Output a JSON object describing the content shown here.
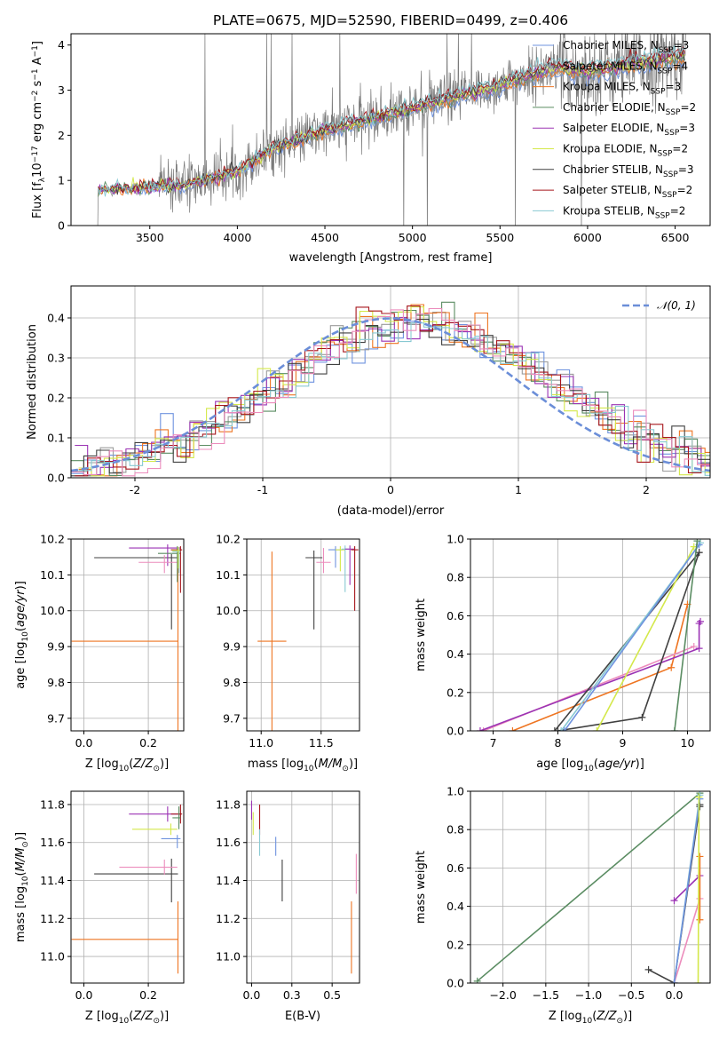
{
  "figure_title": "PLATE=0675, MJD=52590, FIBERID=0499, z=0.406",
  "series_colors": [
    "#6f93df",
    "#9b9b9b",
    "#ee7522",
    "#5a8c62",
    "#9b33b4",
    "#d4e84a",
    "#404040",
    "#a7161c",
    "#88c9d2",
    "#ec8cbc"
  ],
  "chart_data": [
    {
      "id": "spectrum",
      "type": "line",
      "title": "PLATE=0675, MJD=52590, FIBERID=0499, z=0.406",
      "xlabel": "wavelength [Angstrom, rest frame]",
      "ylabel": "Flux [f_λ 10^-17 erg cm^-2 s^-1 A^-1]",
      "xlim": [
        3050,
        6700
      ],
      "ylim": [
        0,
        4.25
      ],
      "xticks": [
        3500,
        4000,
        4500,
        5000,
        5500,
        6000,
        6500
      ],
      "yticks": [
        0,
        1,
        2,
        3,
        4
      ],
      "legend_position": "upper right",
      "legend": [
        {
          "label": "Chabrier MILES, N_SSP=3",
          "color": "#6f93df"
        },
        {
          "label": "Salpeter MILES, N_SSP=4",
          "color": "#9b9b9b"
        },
        {
          "label": "Kroupa MILES, N_SSP=3",
          "color": "#ee7522"
        },
        {
          "label": "Chabrier ELODIE, N_SSP=2",
          "color": "#5a8c62"
        },
        {
          "label": "Salpeter ELODIE, N_SSP=3",
          "color": "#9b33b4"
        },
        {
          "label": "Kroupa ELODIE, N_SSP=2",
          "color": "#d4e84a"
        },
        {
          "label": "Chabrier STELIB, N_SSP=3",
          "color": "#404040"
        },
        {
          "label": "Salpeter STELIB, N_SSP=2",
          "color": "#a7161c"
        },
        {
          "label": "Kroupa STELIB, N_SSP=2",
          "color": "#88c9d2"
        }
      ],
      "model_continuum_x": [
        3200,
        3500,
        3700,
        4000,
        4200,
        4500,
        5000,
        5500,
        5800,
        6000,
        6300,
        6550
      ],
      "model_continuum_y": [
        0.8,
        0.85,
        0.9,
        1.2,
        1.7,
        2.1,
        2.6,
        3.1,
        3.5,
        3.4,
        3.6,
        3.75
      ],
      "grid": false
    },
    {
      "id": "residuals",
      "type": "area",
      "xlabel": "(data-model)/error",
      "ylabel": "Normed distribution",
      "xlim": [
        -2.5,
        2.5
      ],
      "ylim": [
        0,
        0.48
      ],
      "xticks": [
        -2,
        -1,
        0,
        1,
        2
      ],
      "yticks": [
        0.0,
        0.1,
        0.2,
        0.3,
        0.4
      ],
      "legend_position": "upper right",
      "legend": [
        {
          "label": "𝒩(0, 1)",
          "color": "#6b8ed8",
          "style": "dashed"
        }
      ],
      "bin_width": 0.1,
      "grid": true
    },
    {
      "id": "age_vs_Z",
      "type": "scatter",
      "xlabel": "Z [log10(Z/Z⊙)]",
      "ylabel": "age  [log10(age/yr)]",
      "xlim": [
        -0.04,
        0.31
      ],
      "ylim": [
        9.665,
        10.2
      ],
      "xticks": [
        0.0,
        0.2
      ],
      "yticks": [
        9.7,
        9.8,
        9.9,
        10.0,
        10.1,
        10.2
      ],
      "grid": true,
      "points": [
        {
          "x": 0.292,
          "y": 9.915,
          "xerr": [
            0.33,
            0.0
          ],
          "yerr": [
            0.25,
            0.25
          ],
          "color": "#ee7522"
        },
        {
          "x": 0.272,
          "y": 10.148,
          "xerr": [
            0.24,
            0.02
          ],
          "yerr": [
            0.2,
            0.01
          ],
          "color": "#404040"
        },
        {
          "x": 0.26,
          "y": 10.175,
          "xerr": [
            0.12,
            0.04
          ],
          "yerr": [
            0.05,
            0.01
          ],
          "color": "#9b33b4"
        },
        {
          "x": 0.25,
          "y": 10.135,
          "xerr": [
            0.08,
            0.04
          ],
          "yerr": [
            0.03,
            0.02
          ],
          "color": "#ec8cbc"
        },
        {
          "x": 0.29,
          "y": 10.16,
          "xerr": [
            0.06,
            0.01
          ],
          "yerr": [
            0.08,
            0.02
          ],
          "color": "#5a8c62"
        },
        {
          "x": 0.3,
          "y": 10.17,
          "xerr": [
            0.03,
            0.005
          ],
          "yerr": [
            0.12,
            0.01
          ],
          "color": "#a7161c"
        },
        {
          "x": 0.295,
          "y": 10.165,
          "xerr": [
            0.02,
            0.005
          ],
          "yerr": [
            0.06,
            0.01
          ],
          "color": "#88c9d2"
        },
        {
          "x": 0.293,
          "y": 10.168,
          "xerr": [
            0.02,
            0.005
          ],
          "yerr": [
            0.05,
            0.01
          ],
          "color": "#d4e84a"
        }
      ]
    },
    {
      "id": "age_vs_mass",
      "type": "scatter",
      "xlabel": "mass [log10(M/M⊙)]",
      "ylabel": "",
      "xlim": [
        10.88,
        11.82
      ],
      "ylim": [
        9.665,
        10.2
      ],
      "xticks": [
        11.0,
        11.5
      ],
      "yticks": [
        9.7,
        9.8,
        9.9,
        10.0,
        10.1,
        10.2
      ],
      "grid": true,
      "points": [
        {
          "x": 11.09,
          "y": 9.915,
          "xerr": [
            0.12,
            0.12
          ],
          "yerr": [
            0.25,
            0.25
          ],
          "color": "#ee7522"
        },
        {
          "x": 11.44,
          "y": 10.148,
          "xerr": [
            0.07,
            0.07
          ],
          "yerr": [
            0.2,
            0.02
          ],
          "color": "#404040"
        },
        {
          "x": 11.52,
          "y": 10.135,
          "xerr": [
            0.06,
            0.06
          ],
          "yerr": [
            0.03,
            0.04
          ],
          "color": "#ec8cbc"
        },
        {
          "x": 11.62,
          "y": 10.17,
          "xerr": [
            0.06,
            0.06
          ],
          "yerr": [
            0.05,
            0.01
          ],
          "color": "#6f93df"
        },
        {
          "x": 11.66,
          "y": 10.17,
          "xerr": [
            0.04,
            0.04
          ],
          "yerr": [
            0.06,
            0.01
          ],
          "color": "#d4e84a"
        },
        {
          "x": 11.7,
          "y": 10.172,
          "xerr": [
            0.03,
            0.03
          ],
          "yerr": [
            0.12,
            0.01
          ],
          "color": "#88c9d2"
        },
        {
          "x": 11.74,
          "y": 10.172,
          "xerr": [
            0.04,
            0.04
          ],
          "yerr": [
            0.1,
            0.01
          ],
          "color": "#9b33b4"
        },
        {
          "x": 11.78,
          "y": 10.17,
          "xerr": [
            0.03,
            0.03
          ],
          "yerr": [
            0.17,
            0.01
          ],
          "color": "#a7161c"
        }
      ]
    },
    {
      "id": "massweight_vs_age",
      "type": "line",
      "xlabel": "age  [log10(age/yr)]",
      "ylabel": "mass weight",
      "xlim": [
        6.65,
        10.35
      ],
      "ylim": [
        0.0,
        1.0
      ],
      "xticks": [
        7,
        8,
        9,
        10
      ],
      "yticks": [
        0.0,
        0.2,
        0.4,
        0.6,
        0.8,
        1.0
      ],
      "grid": true,
      "series": [
        {
          "color": "#ee7522",
          "x": [
            7.3,
            9.75,
            10.0
          ],
          "y": [
            0.0,
            0.33,
            0.66
          ]
        },
        {
          "color": "#ec8cbc",
          "x": [
            6.85,
            10.1
          ],
          "y": [
            0.0,
            0.44
          ]
        },
        {
          "color": "#9b33b4",
          "x": [
            6.8,
            10.18,
            10.18,
            10.2
          ],
          "y": [
            0.0,
            0.43,
            0.56,
            0.57
          ]
        },
        {
          "color": "#404040",
          "x": [
            8.0,
            9.3,
            10.18
          ],
          "y": [
            0.0,
            0.07,
            0.93
          ]
        },
        {
          "color": "#404040",
          "x": [
            7.95,
            10.18
          ],
          "y": [
            0.0,
            0.93
          ]
        },
        {
          "color": "#d4e84a",
          "x": [
            8.6,
            10.1
          ],
          "y": [
            0.0,
            0.96
          ]
        },
        {
          "color": "#88c9d2",
          "x": [
            8.05,
            10.2
          ],
          "y": [
            0.0,
            0.98
          ]
        },
        {
          "color": "#6f93df",
          "x": [
            8.1,
            10.18
          ],
          "y": [
            0.0,
            0.97
          ]
        },
        {
          "color": "#5a8c62",
          "x": [
            9.8,
            10.15
          ],
          "y": [
            0.0,
            0.99
          ]
        }
      ]
    },
    {
      "id": "mass_vs_Z",
      "type": "scatter",
      "xlabel": "Z [log10(Z/Z⊙)]",
      "ylabel": "mass [log10(M/M⊙)]",
      "xlim": [
        -0.04,
        0.31
      ],
      "ylim": [
        10.86,
        11.87
      ],
      "xticks": [
        0.0,
        0.2
      ],
      "yticks": [
        11.0,
        11.2,
        11.4,
        11.6,
        11.8
      ],
      "grid": true,
      "points": [
        {
          "x": 0.292,
          "y": 11.09,
          "xerr": [
            0.33,
            0.0
          ],
          "yerr": [
            0.18,
            0.2
          ],
          "color": "#ee7522"
        },
        {
          "x": 0.272,
          "y": 11.435,
          "xerr": [
            0.24,
            0.02
          ],
          "yerr": [
            0.15,
            0.08
          ],
          "color": "#404040"
        },
        {
          "x": 0.26,
          "y": 11.75,
          "xerr": [
            0.12,
            0.04
          ],
          "yerr": [
            0.04,
            0.04
          ],
          "color": "#9b33b4"
        },
        {
          "x": 0.25,
          "y": 11.47,
          "xerr": [
            0.14,
            0.04
          ],
          "yerr": [
            0.04,
            0.04
          ],
          "color": "#ec8cbc"
        },
        {
          "x": 0.27,
          "y": 11.67,
          "xerr": [
            0.12,
            0.02
          ],
          "yerr": [
            0.03,
            0.03
          ],
          "color": "#d4e84a"
        },
        {
          "x": 0.29,
          "y": 11.62,
          "xerr": [
            0.05,
            0.01
          ],
          "yerr": [
            0.05,
            0.02
          ],
          "color": "#6f93df"
        },
        {
          "x": 0.3,
          "y": 11.75,
          "xerr": [
            0.03,
            0.005
          ],
          "yerr": [
            0.05,
            0.05
          ],
          "color": "#a7161c"
        },
        {
          "x": 0.295,
          "y": 11.73,
          "xerr": [
            0.02,
            0.005
          ],
          "yerr": [
            0.06,
            0.06
          ],
          "color": "#5a8c62"
        }
      ]
    },
    {
      "id": "mass_vs_EBV",
      "type": "scatter",
      "xlabel": "E(B-V)",
      "ylabel": "",
      "xlim": [
        -0.03,
        0.67
      ],
      "ylim": [
        10.86,
        11.87
      ],
      "xticks": [
        0.0,
        0.25,
        0.5
      ],
      "yticks": [
        11.0,
        11.2,
        11.4,
        11.6,
        11.8
      ],
      "grid": true,
      "points": [
        {
          "x": 0.62,
          "y": 11.09,
          "xerr": [
            0,
            0
          ],
          "yerr": [
            0.18,
            0.2
          ],
          "color": "#ee7522"
        },
        {
          "x": 0.19,
          "y": 11.4,
          "xerr": [
            0,
            0
          ],
          "yerr": [
            0.11,
            0.11
          ],
          "color": "#404040"
        },
        {
          "x": 0.65,
          "y": 11.43,
          "xerr": [
            0,
            0
          ],
          "yerr": [
            0.1,
            0.11
          ],
          "color": "#ec8cbc"
        },
        {
          "x": 0.15,
          "y": 11.58,
          "xerr": [
            0,
            0
          ],
          "yerr": [
            0.05,
            0.05
          ],
          "color": "#6f93df"
        },
        {
          "x": 0.0,
          "y": 11.77,
          "xerr": [
            0,
            0
          ],
          "yerr": [
            0.05,
            0.05
          ],
          "color": "#9b33b4"
        },
        {
          "x": 0.05,
          "y": 11.72,
          "xerr": [
            0,
            0
          ],
          "yerr": [
            0.08,
            0.08
          ],
          "color": "#a7161c"
        },
        {
          "x": 0.05,
          "y": 11.6,
          "xerr": [
            0,
            0
          ],
          "yerr": [
            0.07,
            0.07
          ],
          "color": "#88c9d2"
        },
        {
          "x": 0.01,
          "y": 11.7,
          "xerr": [
            0,
            0
          ],
          "yerr": [
            0.06,
            0.06
          ],
          "color": "#d4e84a"
        }
      ]
    },
    {
      "id": "massweight_vs_Z",
      "type": "line",
      "xlabel": "Z [log10(Z/Z⊙)]",
      "ylabel": "mass weight",
      "xlim": [
        -2.38,
        0.42
      ],
      "ylim": [
        0.0,
        1.0
      ],
      "xticks": [
        -2.0,
        -1.5,
        -1.0,
        -0.5,
        0.0
      ],
      "yticks": [
        0.0,
        0.2,
        0.4,
        0.6,
        0.8,
        1.0
      ],
      "grid": true,
      "series": [
        {
          "color": "#5a8c62",
          "x": [
            -2.3,
            0.3
          ],
          "y": [
            0.01,
            0.99
          ]
        },
        {
          "color": "#404040",
          "x": [
            -0.3,
            0.0,
            0.3,
            0.3
          ],
          "y": [
            0.07,
            0.0,
            0.93,
            0.92
          ]
        },
        {
          "color": "#9b33b4",
          "x": [
            0.0,
            0.3
          ],
          "y": [
            0.43,
            0.56
          ]
        },
        {
          "color": "#ec8cbc",
          "x": [
            0.0,
            0.3
          ],
          "y": [
            0.0,
            0.44
          ]
        },
        {
          "color": "#88c9d2",
          "x": [
            0.0,
            0.3
          ],
          "y": [
            0.0,
            0.98
          ]
        },
        {
          "color": "#6f93df",
          "x": [
            0.0,
            0.3
          ],
          "y": [
            0.0,
            0.96
          ]
        },
        {
          "color": "#ee7522",
          "x": [
            0.3,
            0.3
          ],
          "y": [
            0.33,
            0.66
          ]
        },
        {
          "color": "#d4e84a",
          "x": [
            0.28,
            0.29
          ],
          "y": [
            0.0,
            0.97
          ]
        }
      ]
    }
  ]
}
